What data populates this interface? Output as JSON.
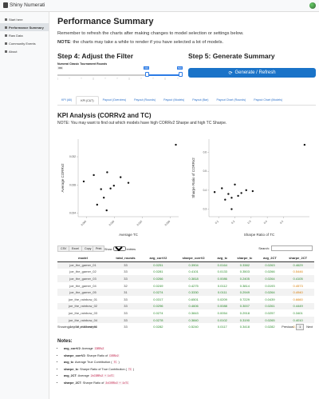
{
  "app": {
    "title": "Shiny Numerati"
  },
  "sidebar": {
    "items": [
      {
        "label": "Start here"
      },
      {
        "label": "Performance Summary"
      },
      {
        "label": "Raw Data"
      },
      {
        "label": "Community Events"
      },
      {
        "label": "About"
      }
    ]
  },
  "main": {
    "title": "Performance Summary",
    "reminder": "Remember to refresh the charts after making changes to model selection or settings below.",
    "note_label": "NOTE",
    "note_text": ": the charts may take a while to render if you have selected a lot of models.",
    "step4": "Step 4: Adjust the Filter",
    "step5": "Step 5: Generate Summary",
    "slider": {
      "label": "Numerai Classic Tournament Rounds",
      "min": "339",
      "low": "339",
      "high": "500"
    },
    "generate_button": "Generate / Refresh",
    "tabs": [
      "KPI (All)",
      "KPI (C&T)",
      "Payout (Overview)",
      "Payout (Rounds)",
      "Payout (Models)",
      "Payout (Bar)",
      "Payout Chart (Rounds)",
      "Payout Chart (Models)"
    ],
    "kpi_title": "KPI Analysis (CORRv2 and TC)",
    "kpi_note": "NOTE: You may want to find out which models have high CORRv2 Sharpe and high TC Sharpe."
  },
  "chart_data": [
    {
      "type": "scatter",
      "xlabel": "Average TC",
      "ylabel": "Average CORRv2",
      "xticks": [
        "0.005",
        "0.010",
        "0.015",
        "0.020"
      ],
      "yticks": [
        "0.024",
        "0.028",
        "0.032"
      ],
      "xlim": [
        0.0035,
        0.0215
      ],
      "ylim": [
        0.0235,
        0.0345
      ],
      "points": [
        [
          0.0045,
          0.0285
        ],
        [
          0.0063,
          0.0294
        ],
        [
          0.0069,
          0.0252
        ],
        [
          0.0076,
          0.0274
        ],
        [
          0.0081,
          0.0262
        ],
        [
          0.0087,
          0.0298
        ],
        [
          0.0093,
          0.0275
        ],
        [
          0.0099,
          0.0279
        ],
        [
          0.0111,
          0.0291
        ],
        [
          0.0125,
          0.0283
        ],
        [
          0.0086,
          0.0244
        ],
        [
          0.021,
          0.0337
        ]
      ]
    },
    {
      "type": "scatter",
      "xlabel": "Sharpe Ratio of TC",
      "ylabel": "Sharpe Ratio of CORRv2",
      "xticks": [
        "0.1",
        "0.2",
        "0.3",
        "0.4",
        "0.5"
      ],
      "yticks": [
        "0.3",
        "0.4",
        "0.5",
        "0.6"
      ],
      "xlim": [
        0.04,
        0.66
      ],
      "ylim": [
        0.26,
        0.67
      ],
      "points": [
        [
          0.075,
          0.39
        ],
        [
          0.12,
          0.41
        ],
        [
          0.14,
          0.35
        ],
        [
          0.16,
          0.38
        ],
        [
          0.18,
          0.36
        ],
        [
          0.2,
          0.43
        ],
        [
          0.22,
          0.37
        ],
        [
          0.24,
          0.385
        ],
        [
          0.27,
          0.4
        ],
        [
          0.31,
          0.395
        ],
        [
          0.18,
          0.3
        ],
        [
          0.63,
          0.64
        ]
      ]
    }
  ],
  "table": {
    "buttons": [
      "CSV",
      "Excel",
      "Copy",
      "Print"
    ],
    "show_label": "Show",
    "show_value": "15",
    "entries_label": "entries",
    "search_label": "Search:",
    "columns": [
      "model",
      "total_rounds",
      "avg_corrV2",
      "sharpe_corrV2",
      "avg_tc",
      "sharpe_tc",
      "avg_2CT",
      "sharpe_2CT"
    ],
    "rows": [
      [
        "joe_the_gamer_01",
        "33",
        "0.0251",
        "0.3904",
        "0.0164",
        "0.3382",
        "0.0263",
        "0.4629"
      ],
      [
        "joe_the_gamer_02",
        "33",
        "0.0281",
        "0.4101",
        "0.0133",
        "0.3503",
        "0.0266",
        "0.5446"
      ],
      [
        "joe_the_gamer_03",
        "33",
        "0.0266",
        "0.3818",
        "0.0086",
        "0.2405",
        "0.0264",
        "0.4105"
      ],
      [
        "joe_the_gamer_04",
        "32",
        "0.0249",
        "0.4275",
        "0.0112",
        "0.3814",
        "0.0193",
        "0.4573"
      ],
      [
        "joe_the_gamer_05",
        "31",
        "0.0274",
        "0.3330",
        "0.0111",
        "0.2949",
        "0.0264",
        "0.4940"
      ],
      [
        "joe_the_rainbow_01",
        "33",
        "0.0317",
        "0.6501",
        "0.0209",
        "0.7229",
        "0.0439",
        "0.6660"
      ],
      [
        "joe_the_rainbow_02",
        "33",
        "0.0296",
        "0.4606",
        "0.0088",
        "0.3007",
        "0.0261",
        "0.4449"
      ],
      [
        "joe_the_rainbow_03",
        "33",
        "0.0274",
        "0.3843",
        "0.0054",
        "0.2918",
        "0.0257",
        "0.3401"
      ],
      [
        "joe_the_rainbow_04",
        "33",
        "0.0278",
        "0.3840",
        "0.0102",
        "0.3190",
        "0.0265",
        "0.4010"
      ],
      [
        "joe_the_rainbow_05",
        "33",
        "0.0282",
        "0.5240",
        "0.0117",
        "0.3418",
        "0.0282",
        "0.6213"
      ]
    ],
    "showing": "Showing 1 to 10 of 10 entries",
    "prev": "Previous",
    "page": "1",
    "next": "Next"
  },
  "notes": {
    "title": "Notes:",
    "items": [
      {
        "name": "avg_corrV2",
        "text": ": Average",
        "code": "CORRv2"
      },
      {
        "name": "sharpe_corrV2",
        "text": ": Sharpe Ratio of",
        "code": "CORRv2"
      },
      {
        "name": "avg_tc",
        "text": ": Average True Contribution (",
        "code": "TC",
        "tail": ")"
      },
      {
        "name": "sharpe_tc",
        "text": ": Sharpe Ratio of True Contribution (",
        "code": "TC",
        "tail": ")"
      },
      {
        "name": "avg_2CT",
        "text": ": Average",
        "code": "2xCORRv2 + 1xTC"
      },
      {
        "name": "sharpe_2CT",
        "text": ": Sharpe Ratio of",
        "code": "2xCORRv2 + 1xTC"
      }
    ]
  }
}
